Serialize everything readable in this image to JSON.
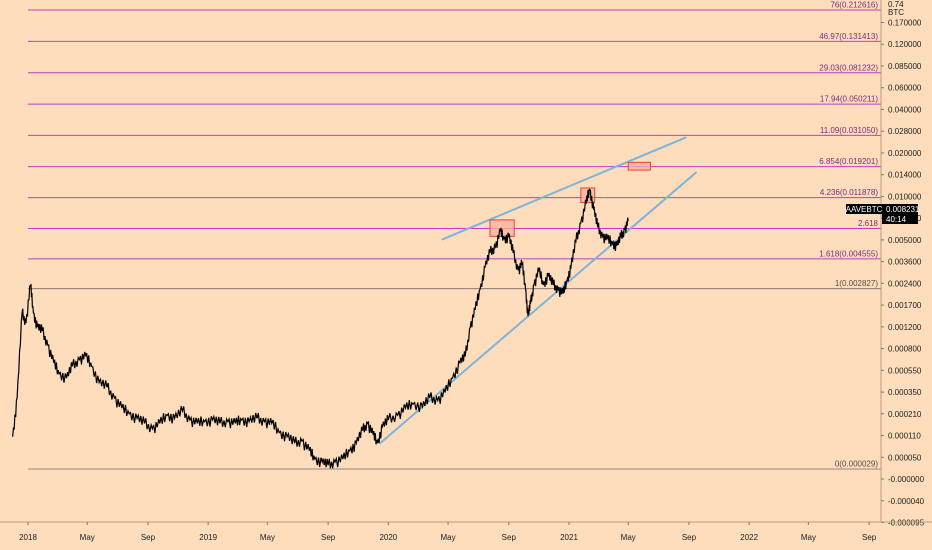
{
  "chart_data": {
    "type": "line",
    "symbol": "AAVEBTC",
    "last_price": "0.008231",
    "countdown": "40:14",
    "y_axis_unit": "BTC",
    "y_axis_top_fragment": "0.74",
    "y_axis_ticks": [
      "0.170000",
      "0.120000",
      "0.085000",
      "0.060000",
      "0.040000",
      "0.028000",
      "0.020000",
      "0.014000",
      "0.010000",
      "0.006500",
      "0.005000",
      "0.003600",
      "0.002400",
      "0.001700",
      "0.001200",
      "0.000800",
      "0.000550",
      "0.000350",
      "0.000210",
      "0.000110",
      "0.000050",
      "-0.000000",
      "-0.000040",
      "-0.000095"
    ],
    "x_axis_ticks": [
      "2018",
      "May",
      "Sep",
      "2019",
      "May",
      "Sep",
      "2020",
      "May",
      "Sep",
      "2021",
      "May",
      "Sep",
      "2022",
      "May",
      "Sep"
    ],
    "fib_levels": [
      {
        "label": "76(0.212616)",
        "value": 0.212616
      },
      {
        "label": "46.97(0.131413)",
        "value": 0.131413
      },
      {
        "label": "29.03(0.081232)",
        "value": 0.081232
      },
      {
        "label": "17.94(0.050211)",
        "value": 0.050211
      },
      {
        "label": "11.09(0.031050)",
        "value": 0.03105
      },
      {
        "label": "6.854(0.019201)",
        "value": 0.019201
      },
      {
        "label": "4.236(0.011878)",
        "value": 0.011878
      },
      {
        "label": "2.618",
        "value": 0.00734
      },
      {
        "label": "1.618(0.004555)",
        "value": 0.004555
      },
      {
        "label": "1(0.002827)",
        "value": 0.002827
      },
      {
        "label": "0(0.000029)",
        "value": 2.9e-05
      }
    ],
    "price_path": [
      [
        "2017-12-01",
        0.00015
      ],
      [
        "2017-12-10",
        0.0004
      ],
      [
        "2017-12-20",
        0.0019
      ],
      [
        "2017-12-28",
        0.0016
      ],
      [
        "2018-01-06",
        0.003
      ],
      [
        "2018-01-12",
        0.0019
      ],
      [
        "2018-01-20",
        0.0015
      ],
      [
        "2018-01-30",
        0.0014
      ],
      [
        "2018-02-10",
        0.0011
      ],
      [
        "2018-02-22",
        0.0008
      ],
      [
        "2018-03-05",
        0.00065
      ],
      [
        "2018-03-20",
        0.0006
      ],
      [
        "2018-04-01",
        0.00075
      ],
      [
        "2018-04-15",
        0.00085
      ],
      [
        "2018-04-28",
        0.0009
      ],
      [
        "2018-05-10",
        0.00075
      ],
      [
        "2018-05-25",
        0.00055
      ],
      [
        "2018-06-10",
        0.0005
      ],
      [
        "2018-06-25",
        0.0004
      ],
      [
        "2018-07-10",
        0.00032
      ],
      [
        "2018-07-25",
        0.00028
      ],
      [
        "2018-08-10",
        0.00025
      ],
      [
        "2018-08-25",
        0.00022
      ],
      [
        "2018-09-10",
        0.00019
      ],
      [
        "2018-09-25",
        0.00022
      ],
      [
        "2018-10-10",
        0.00027
      ],
      [
        "2018-10-25",
        0.00025
      ],
      [
        "2018-11-10",
        0.0003
      ],
      [
        "2018-11-25",
        0.00024
      ],
      [
        "2018-12-10",
        0.00022
      ],
      [
        "2018-12-25",
        0.00023
      ],
      [
        "2019-01-10",
        0.00024
      ],
      [
        "2019-01-25",
        0.00022
      ],
      [
        "2019-02-10",
        0.00023
      ],
      [
        "2019-02-25",
        0.00022
      ],
      [
        "2019-03-10",
        0.00024
      ],
      [
        "2019-03-25",
        0.00023
      ],
      [
        "2019-04-10",
        0.00025
      ],
      [
        "2019-04-25",
        0.00023
      ],
      [
        "2019-05-10",
        0.00022
      ],
      [
        "2019-05-25",
        0.00017
      ],
      [
        "2019-06-10",
        0.00015
      ],
      [
        "2019-06-25",
        0.00012
      ],
      [
        "2019-07-10",
        0.00013
      ],
      [
        "2019-07-25",
        9e-05
      ],
      [
        "2019-08-05",
        6e-05
      ],
      [
        "2019-08-20",
        5e-05
      ],
      [
        "2019-09-01",
        4e-05
      ],
      [
        "2019-09-15",
        5e-05
      ],
      [
        "2019-10-01",
        6e-05
      ],
      [
        "2019-10-15",
        9e-05
      ],
      [
        "2019-10-28",
        0.00012
      ],
      [
        "2019-11-10",
        0.00018
      ],
      [
        "2019-11-20",
        0.00022
      ],
      [
        "2019-12-01",
        0.00016
      ],
      [
        "2019-12-10",
        0.00012
      ],
      [
        "2019-12-20",
        0.0002
      ],
      [
        "2020-01-01",
        0.00024
      ],
      [
        "2020-01-20",
        0.00027
      ],
      [
        "2020-02-05",
        0.00032
      ],
      [
        "2020-02-20",
        0.00035
      ],
      [
        "2020-03-10",
        0.00033
      ],
      [
        "2020-03-25",
        0.0004
      ],
      [
        "2020-04-10",
        0.00038
      ],
      [
        "2020-04-25",
        0.00045
      ],
      [
        "2020-05-10",
        0.0006
      ],
      [
        "2020-05-25",
        0.0008
      ],
      [
        "2020-06-05",
        0.0009
      ],
      [
        "2020-06-15",
        0.0015
      ],
      [
        "2020-06-25",
        0.002
      ],
      [
        "2020-07-05",
        0.0028
      ],
      [
        "2020-07-15",
        0.004
      ],
      [
        "2020-07-25",
        0.005
      ],
      [
        "2020-08-05",
        0.0055
      ],
      [
        "2020-08-15",
        0.007
      ],
      [
        "2020-08-22",
        0.0062
      ],
      [
        "2020-09-01",
        0.0065
      ],
      [
        "2020-09-10",
        0.005
      ],
      [
        "2020-09-20",
        0.0038
      ],
      [
        "2020-09-28",
        0.0042
      ],
      [
        "2020-10-05",
        0.0028
      ],
      [
        "2020-10-10",
        0.0018
      ],
      [
        "2020-10-15",
        0.0022
      ],
      [
        "2020-10-22",
        0.003
      ],
      [
        "2020-11-01",
        0.0038
      ],
      [
        "2020-11-10",
        0.003
      ],
      [
        "2020-11-20",
        0.0035
      ],
      [
        "2020-11-30",
        0.003
      ],
      [
        "2020-12-10",
        0.0028
      ],
      [
        "2020-12-20",
        0.0026
      ],
      [
        "2020-12-28",
        0.0032
      ],
      [
        "2021-01-05",
        0.004
      ],
      [
        "2021-01-15",
        0.006
      ],
      [
        "2021-01-25",
        0.008
      ],
      [
        "2021-02-05",
        0.011
      ],
      [
        "2021-02-12",
        0.0135
      ],
      [
        "2021-02-20",
        0.01
      ],
      [
        "2021-02-28",
        0.0075
      ],
      [
        "2021-03-10",
        0.0065
      ],
      [
        "2021-03-20",
        0.0062
      ],
      [
        "2021-03-30",
        0.0058
      ],
      [
        "2021-04-08",
        0.0056
      ],
      [
        "2021-04-16",
        0.0064
      ],
      [
        "2021-04-24",
        0.0072
      ],
      [
        "2021-05-01",
        0.00823
      ]
    ],
    "trendlines": [
      {
        "name": "upper-channel",
        "start": [
          "2020-04-20",
          0.0062
        ],
        "end": [
          "2021-08-25",
          0.03
        ]
      },
      {
        "name": "lower-channel",
        "start": [
          "2019-12-15",
          0.00012
        ],
        "end": [
          "2021-09-15",
          0.0175
        ]
      }
    ],
    "highlight_boxes": [
      {
        "x0": "2020-07-25",
        "x1": "2020-09-12",
        "y0": 0.0065,
        "y1": 0.0084
      },
      {
        "x0": "2021-01-25",
        "x1": "2021-02-22",
        "y0": 0.011,
        "y1": 0.0138
      },
      {
        "x0": "2021-05-01",
        "x1": "2021-06-15",
        "y0": 0.0182,
        "y1": 0.0205
      }
    ],
    "colors": {
      "background": "#fdddbb",
      "fib_line": "#c23cc6",
      "fib_base_line": "#7a6a6a",
      "trendline": "#7fb3d8",
      "box_fill": "#f6b2a0",
      "box_stroke": "#e0453a",
      "price_line": "#000000",
      "label_bg": "#000000",
      "label_fg": "#ffffff"
    }
  }
}
